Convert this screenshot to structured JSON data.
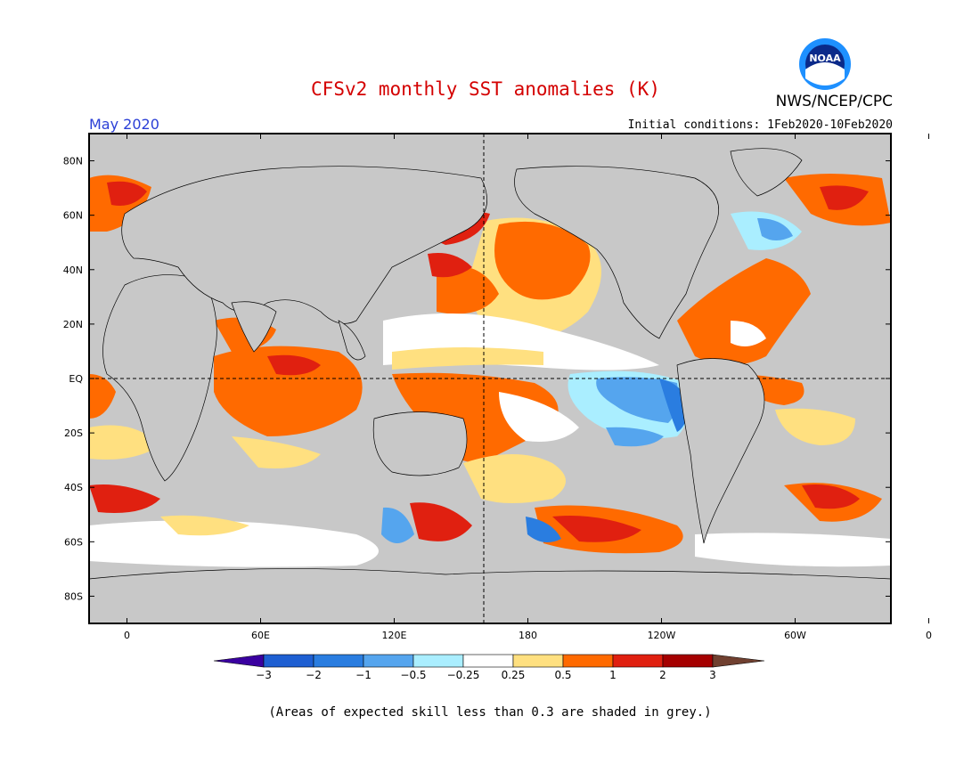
{
  "header": {
    "title": "CFSv2 monthly SST anomalies (K)",
    "agency": "NWS/NCEP/CPC",
    "logo_text": "NOAA",
    "period": "May 2020",
    "initial_conditions": "Initial conditions: 1Feb2020-10Feb2020"
  },
  "map": {
    "lat_labels": [
      "80N",
      "60N",
      "40N",
      "20N",
      "EQ",
      "20S",
      "40S",
      "60S",
      "80S"
    ],
    "lon_labels": [
      "0",
      "60E",
      "120E",
      "180",
      "120W",
      "60W",
      "0"
    ],
    "colors": {
      "land": "#c8c8c8",
      "skill_grey": "#c8c8c8",
      "frame": "#000000"
    }
  },
  "colorbar": {
    "tick_labels": [
      "-3",
      "-2",
      "-1",
      "-0.5",
      "-0.25",
      "0.25",
      "0.5",
      "1",
      "2",
      "3"
    ],
    "colors": [
      "#3a00a0",
      "#1e5fd2",
      "#2a7de0",
      "#55a5ee",
      "#aaeeff",
      "#ffffff",
      "#ffe080",
      "#ff6a00",
      "#e02010",
      "#a50000",
      "#704030"
    ]
  },
  "footnote": "(Areas of expected skill less than 0.3 are shaded in grey.)"
}
